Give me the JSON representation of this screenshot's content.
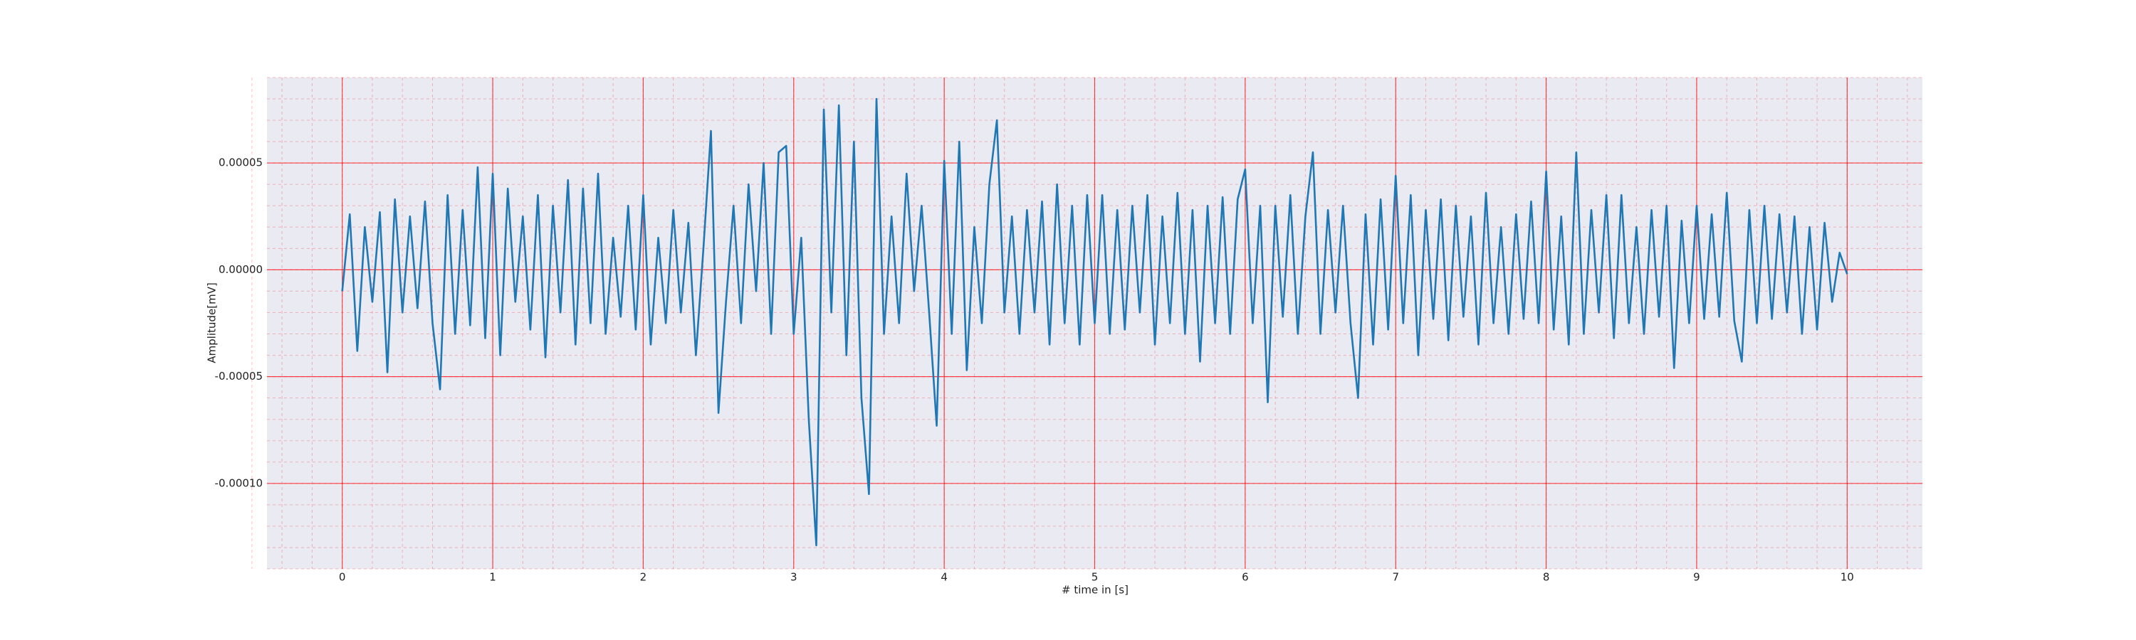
{
  "chart_data": {
    "type": "line",
    "xlabel": "# time in [s]",
    "ylabel": "Amplitude[mV]",
    "xlim": [
      -0.5,
      10.5
    ],
    "ylim": [
      -0.00014,
      9e-05
    ],
    "xticks": [
      0,
      1,
      2,
      3,
      4,
      5,
      6,
      7,
      8,
      9,
      10
    ],
    "yticks": [
      {
        "value": -0.0001,
        "label": "-0.00010"
      },
      {
        "value": -5e-05,
        "label": "-0.00005"
      },
      {
        "value": 0,
        "label": "0.00000"
      },
      {
        "value": 5e-05,
        "label": "0.00005"
      }
    ],
    "grid": true,
    "minor_grid": true,
    "grid_color": "#ff0000",
    "background": "#eaeaf2",
    "color": "#1f77b4",
    "x": [
      0,
      0.05,
      0.1,
      0.15,
      0.2,
      0.25,
      0.3,
      0.35,
      0.4,
      0.45,
      0.5,
      0.55,
      0.6,
      0.65,
      0.7,
      0.75,
      0.8,
      0.85,
      0.9,
      0.95,
      1,
      1.05,
      1.1,
      1.15,
      1.2,
      1.25,
      1.3,
      1.35,
      1.4,
      1.45,
      1.5,
      1.55,
      1.6,
      1.65,
      1.7,
      1.75,
      1.8,
      1.85,
      1.9,
      1.95,
      2,
      2.05,
      2.1,
      2.15,
      2.2,
      2.25,
      2.3,
      2.35,
      2.4,
      2.45,
      2.5,
      2.55,
      2.6,
      2.65,
      2.7,
      2.75,
      2.8,
      2.85,
      2.9,
      2.95,
      3,
      3.05,
      3.1,
      3.15,
      3.2,
      3.25,
      3.3,
      3.35,
      3.4,
      3.45,
      3.5,
      3.55,
      3.6,
      3.65,
      3.7,
      3.75,
      3.8,
      3.85,
      3.9,
      3.95,
      4,
      4.05,
      4.1,
      4.15,
      4.2,
      4.25,
      4.3,
      4.35,
      4.4,
      4.45,
      4.5,
      4.55,
      4.6,
      4.65,
      4.7,
      4.75,
      4.8,
      4.85,
      4.9,
      4.95,
      5,
      5.05,
      5.1,
      5.15,
      5.2,
      5.25,
      5.3,
      5.35,
      5.4,
      5.45,
      5.5,
      5.55,
      5.6,
      5.65,
      5.7,
      5.75,
      5.8,
      5.85,
      5.9,
      5.95,
      6,
      6.05,
      6.1,
      6.15,
      6.2,
      6.25,
      6.3,
      6.35,
      6.4,
      6.45,
      6.5,
      6.55,
      6.6,
      6.65,
      6.7,
      6.75,
      6.8,
      6.85,
      6.9,
      6.95,
      7,
      7.05,
      7.1,
      7.15,
      7.2,
      7.25,
      7.3,
      7.35,
      7.4,
      7.45,
      7.5,
      7.55,
      7.6,
      7.65,
      7.7,
      7.75,
      7.8,
      7.85,
      7.9,
      7.95,
      8,
      8.05,
      8.1,
      8.15,
      8.2,
      8.25,
      8.3,
      8.35,
      8.4,
      8.45,
      8.5,
      8.55,
      8.6,
      8.65,
      8.7,
      8.75,
      8.8,
      8.85,
      8.9,
      8.95,
      9,
      9.05,
      9.1,
      9.15,
      9.2,
      9.25,
      9.3,
      9.35,
      9.4,
      9.45,
      9.5,
      9.55,
      9.6,
      9.65,
      9.7,
      9.75,
      9.8,
      9.85,
      9.9,
      9.95,
      10
    ],
    "values": [
      -1e-05,
      2.6e-05,
      -3.8e-05,
      2e-05,
      -1.5e-05,
      2.7e-05,
      -4.8e-05,
      3.3e-05,
      -2e-05,
      2.5e-05,
      -1.8e-05,
      3.2e-05,
      -2.5e-05,
      -5.6e-05,
      3.5e-05,
      -3e-05,
      2.8e-05,
      -2.6e-05,
      4.8e-05,
      -3.2e-05,
      4.5e-05,
      -4e-05,
      3.8e-05,
      -1.5e-05,
      2.5e-05,
      -2.8e-05,
      3.5e-05,
      -4.1e-05,
      3e-05,
      -2e-05,
      4.2e-05,
      -3.5e-05,
      3.8e-05,
      -2.5e-05,
      4.5e-05,
      -3e-05,
      1.5e-05,
      -2.2e-05,
      3e-05,
      -2.8e-05,
      3.5e-05,
      -3.5e-05,
      1.5e-05,
      -2.5e-05,
      2.8e-05,
      -2e-05,
      2.2e-05,
      -4e-05,
      1e-05,
      6.5e-05,
      -6.7e-05,
      -1.5e-05,
      3e-05,
      -2.5e-05,
      4e-05,
      -1e-05,
      5e-05,
      -3e-05,
      5.5e-05,
      5.8e-05,
      -3e-05,
      1.5e-05,
      -7e-05,
      -0.000129,
      7.5e-05,
      -2e-05,
      7.7e-05,
      -4e-05,
      6e-05,
      -6e-05,
      -0.000105,
      8e-05,
      -3e-05,
      2.5e-05,
      -2.5e-05,
      4.5e-05,
      -1e-05,
      3e-05,
      -2e-05,
      -7.3e-05,
      5.1e-05,
      -3e-05,
      6e-05,
      -4.7e-05,
      2e-05,
      -2.5e-05,
      4e-05,
      7e-05,
      -2e-05,
      2.5e-05,
      -3e-05,
      2.8e-05,
      -2e-05,
      3.2e-05,
      -3.5e-05,
      4e-05,
      -2.5e-05,
      3e-05,
      -3.5e-05,
      3.5e-05,
      -2.5e-05,
      3.5e-05,
      -3e-05,
      2.8e-05,
      -2.8e-05,
      3e-05,
      -2e-05,
      3.5e-05,
      -3.5e-05,
      2.5e-05,
      -2.5e-05,
      3.6e-05,
      -3e-05,
      2.8e-05,
      -4.3e-05,
      3e-05,
      -2.5e-05,
      3.4e-05,
      -3e-05,
      3.3e-05,
      4.7e-05,
      -2.5e-05,
      3e-05,
      -6.2e-05,
      3e-05,
      -2.2e-05,
      3.5e-05,
      -3e-05,
      2.5e-05,
      5.5e-05,
      -3e-05,
      2.8e-05,
      -2e-05,
      3e-05,
      -2.5e-05,
      -6e-05,
      2.6e-05,
      -3.5e-05,
      3.3e-05,
      -2.8e-05,
      4.4e-05,
      -2.5e-05,
      3.5e-05,
      -4e-05,
      2.8e-05,
      -2.3e-05,
      3.3e-05,
      -3.3e-05,
      3e-05,
      -2.2e-05,
      2.5e-05,
      -3.5e-05,
      3.6e-05,
      -2.5e-05,
      2e-05,
      -3e-05,
      2.6e-05,
      -2.3e-05,
      3.2e-05,
      -2.5e-05,
      4.6e-05,
      -2.8e-05,
      2.5e-05,
      -3.5e-05,
      5.5e-05,
      -3e-05,
      2.8e-05,
      -2e-05,
      3.5e-05,
      -3.2e-05,
      3.5e-05,
      -2.5e-05,
      2e-05,
      -3e-05,
      2.8e-05,
      -2.2e-05,
      3e-05,
      -4.6e-05,
      2.3e-05,
      -2.5e-05,
      3e-05,
      -2.3e-05,
      2.6e-05,
      -2.2e-05,
      3.6e-05,
      -2.4e-05,
      -4.3e-05,
      2.8e-05,
      -2.5e-05,
      3e-05,
      -2.3e-05,
      2.6e-05,
      -2e-05,
      2.5e-05,
      -3e-05,
      2e-05,
      -2.8e-05,
      2.2e-05,
      -1.5e-05,
      8e-06,
      -2e-06
    ]
  }
}
